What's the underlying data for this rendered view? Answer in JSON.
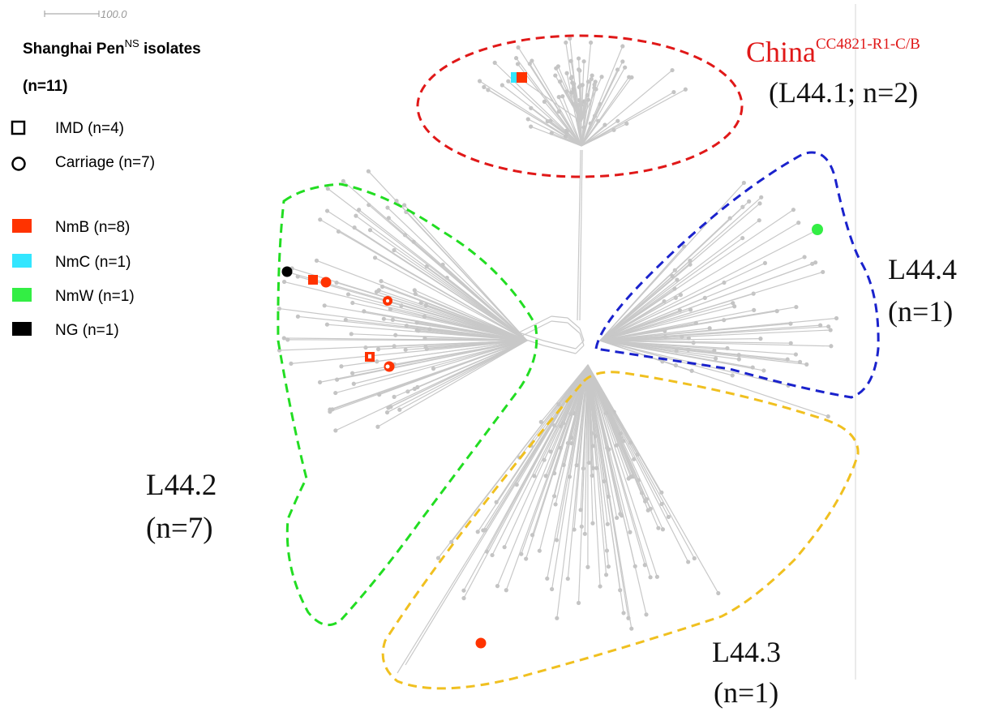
{
  "scale_bar": {
    "label": "100.0"
  },
  "legend": {
    "title_main": "Shanghai Pen",
    "title_sup": "NS",
    "title_rest": " isolates",
    "total": "(n=11)",
    "shapes": [
      {
        "icon": "square-outline-icon",
        "label": "IMD (n=4)"
      },
      {
        "icon": "circle-outline-icon",
        "label": "Carriage (n=7)"
      }
    ],
    "serogroups": [
      {
        "label": "NmB (n=8)",
        "color": "#ff3300"
      },
      {
        "label": "NmC (n=1)",
        "color": "#33e6ff"
      },
      {
        "label": "NmW (n=1)",
        "color": "#33ee44"
      },
      {
        "label": "NG (n=1)",
        "color": "#000000"
      }
    ]
  },
  "clusters": {
    "l441": {
      "name_main": "China",
      "name_sup": "CC4821-R1-C/B",
      "detail": "(L44.1; n=2)",
      "outline_color": "#e01818",
      "name_color": "#e01818"
    },
    "l442": {
      "name": "L44.2",
      "count": "(n=7)",
      "outline_color": "#22dd22"
    },
    "l443": {
      "name": "L44.3",
      "count": "(n=1)",
      "outline_color": "#f0c020"
    },
    "l444": {
      "name": "L44.4",
      "count": "(n=1)",
      "outline_color": "#1a22cc"
    }
  }
}
